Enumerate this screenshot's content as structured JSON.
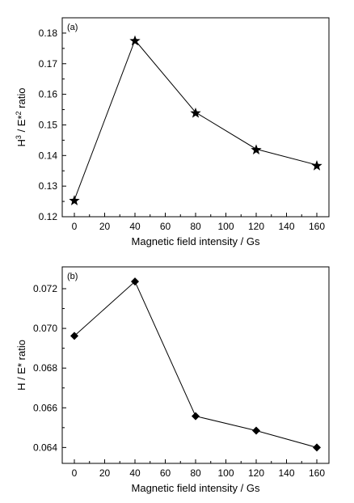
{
  "chart_data": [
    {
      "type": "line",
      "panel_label": "(a)",
      "xlabel": "Magnetic field intensity / Gs",
      "ylabel": {
        "main": "H",
        "sup1": "3",
        "mid": " / E*",
        "sup2": "2",
        "end": " ratio"
      },
      "x": [
        0,
        40,
        80,
        120,
        160
      ],
      "series": [
        {
          "values": [
            0.1255,
            0.1777,
            0.1541,
            0.1421,
            0.1369
          ],
          "marker": "star"
        }
      ],
      "xlim": [
        -8,
        168
      ],
      "ylim": [
        0.12,
        0.185
      ],
      "xticks": [
        0,
        20,
        40,
        60,
        80,
        100,
        120,
        140,
        160
      ],
      "yticks": [
        0.12,
        0.13,
        0.14,
        0.15,
        0.16,
        0.17,
        0.18
      ],
      "ytick_labels": [
        "0.12",
        "0.13",
        "0.14",
        "0.15",
        "0.16",
        "0.17",
        "0.18"
      ],
      "grid": false
    },
    {
      "type": "line",
      "panel_label": "(b)",
      "xlabel": "Magnetic field intensity / Gs",
      "ylabel": {
        "main": "H / E* ratio"
      },
      "x": [
        0,
        40,
        80,
        120,
        160
      ],
      "series": [
        {
          "values": [
            0.06962,
            0.07236,
            0.06558,
            0.06485,
            0.064
          ],
          "marker": "diamond"
        }
      ],
      "xlim": [
        -8,
        168
      ],
      "ylim": [
        0.0632,
        0.0731
      ],
      "xticks": [
        0,
        20,
        40,
        60,
        80,
        100,
        120,
        140,
        160
      ],
      "yticks": [
        0.064,
        0.066,
        0.068,
        0.07,
        0.072
      ],
      "ytick_labels": [
        "0.064",
        "0.066",
        "0.068",
        "0.070",
        "0.072"
      ],
      "grid": false
    }
  ]
}
